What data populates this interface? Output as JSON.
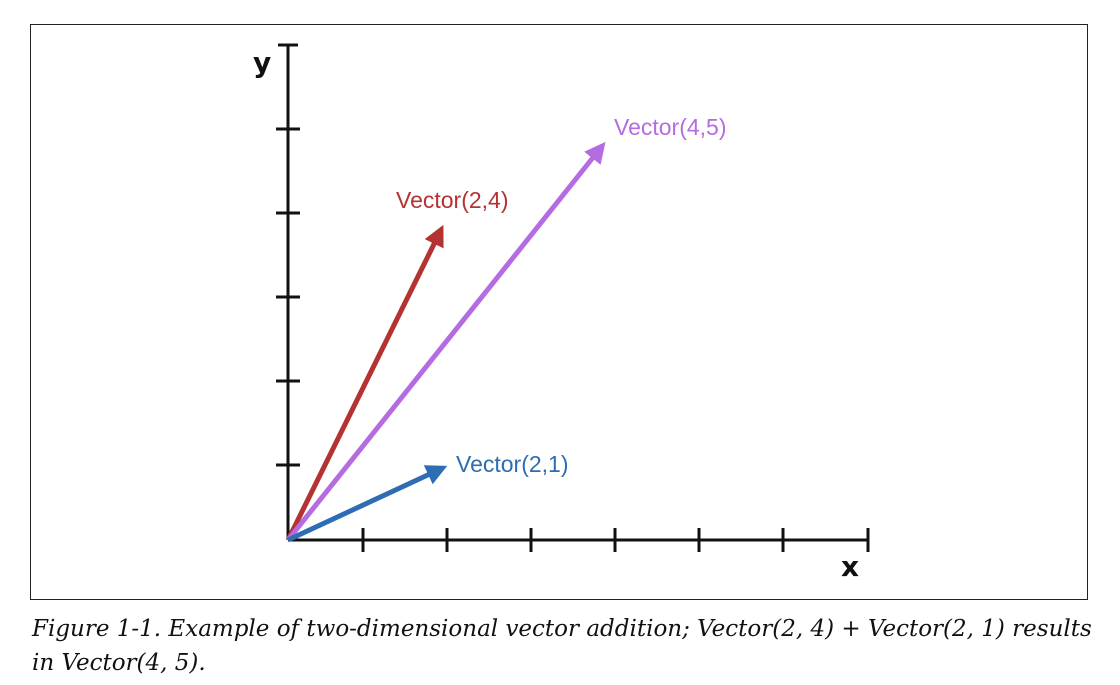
{
  "figure": {
    "x_axis_label": "x",
    "y_axis_label": "y",
    "x_ticks": 7,
    "y_ticks": 5,
    "vectors": [
      {
        "label": "Vector(2,4)",
        "x": 2,
        "y": 4,
        "color": "#b53232"
      },
      {
        "label": "Vector(4,5)",
        "x": 4,
        "y": 5,
        "color": "#b56ce0"
      },
      {
        "label": "Vector(2,1)",
        "x": 2,
        "y": 1,
        "color": "#2e6db3"
      }
    ]
  },
  "caption": {
    "text": "Figure 1-1. Example of two-dimensional vector addition; Vector(2, 4) + Vector(2, 1) results in Vector(4, 5)."
  }
}
